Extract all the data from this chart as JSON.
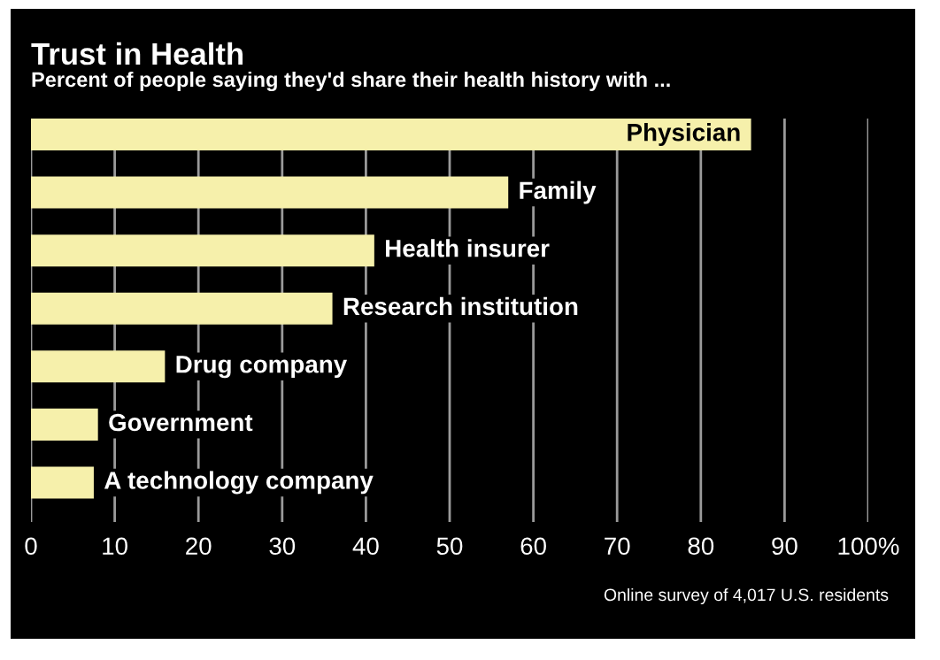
{
  "chart_data": {
    "type": "bar",
    "orientation": "horizontal",
    "title": "Trust in Health",
    "subtitle": "Percent of people saying they'd share their health history with ...",
    "categories": [
      "Physician",
      "Family",
      "Health insurer",
      "Research institution",
      "Drug company",
      "Government",
      "A technology company"
    ],
    "values": [
      86,
      57,
      41,
      36,
      16,
      8,
      7.5
    ],
    "color": "#f6f0ab",
    "xlim": [
      0,
      100
    ],
    "xticks": [
      0,
      10,
      20,
      30,
      40,
      50,
      60,
      70,
      80,
      90,
      {
        "value": 100,
        "label": "100%"
      }
    ],
    "grid": "x",
    "annotations": [
      "Online survey of 4,017 U.S. residents"
    ]
  }
}
